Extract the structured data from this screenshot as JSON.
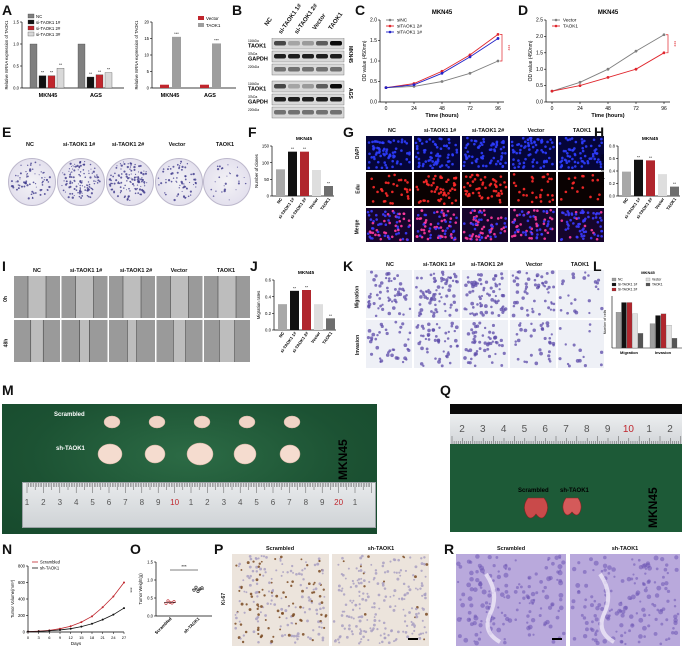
{
  "panel_letters": [
    "A",
    "B",
    "C",
    "D",
    "E",
    "F",
    "G",
    "H",
    "I",
    "J",
    "K",
    "L",
    "M",
    "Q",
    "N",
    "O",
    "P",
    "R"
  ],
  "A": {
    "left": {
      "ylabel": "Relative mRNA expression of TAOK1",
      "yticks": [
        "0.0",
        "0.5",
        "1.0",
        "1.5"
      ],
      "legend": [
        {
          "name": "NC",
          "color": "#7f7f7f"
        },
        {
          "name": "si-TAOK1 1#",
          "color": "#111111"
        },
        {
          "name": "si-TAOK1 2#",
          "color": "#c0262d"
        },
        {
          "name": "si-TAOK1 3#",
          "color": "#d9d9d9"
        }
      ],
      "groups": [
        "MKN45",
        "AGS"
      ],
      "sig": [
        "**",
        "**",
        "**",
        "**",
        "**",
        "**"
      ]
    },
    "right": {
      "ylabel": "Relative mRNA expression of TAOK1",
      "yticks": [
        "0",
        "5",
        "10",
        "15",
        "20"
      ],
      "legend": [
        {
          "name": "Vector",
          "color": "#c0262d"
        },
        {
          "name": "TAOK1",
          "color": "#9e9e9e"
        }
      ],
      "groups": [
        "MKN45",
        "AGS"
      ],
      "sig": [
        "***",
        "***"
      ]
    }
  },
  "B": {
    "columns": [
      "NC",
      "si-TAOK1 1#",
      "si-TAOK1 2#",
      "Vector",
      "TAOK1"
    ],
    "rows": [
      {
        "kda": "116kDa",
        "name": "TAOK1"
      },
      {
        "kda": "37kDa",
        "name": "GAPDH"
      },
      {
        "kda": "220kDa",
        "name": ""
      },
      {
        "kda": "116kDa",
        "name": "TAOK1"
      },
      {
        "kda": "37kDa",
        "name": "GAPDH"
      },
      {
        "kda": "220kDa",
        "name": ""
      }
    ],
    "cell_lines": [
      "MKN45",
      "AGS"
    ]
  },
  "C": {
    "title": "MKN45",
    "ylabel": "OD value (450nm)",
    "xlabel": "Time (hours)",
    "xticks": [
      "0",
      "24",
      "48",
      "72",
      "96"
    ],
    "yticks": [
      "0.0",
      "0.5",
      "1.0",
      "1.5",
      "2.0"
    ],
    "sig": "***",
    "legend": [
      {
        "name": "siNC",
        "color": "#7f7f7f"
      },
      {
        "name": "siTAOK1 2#",
        "color": "#e0262d"
      },
      {
        "name": "siTAOK1 1#",
        "color": "#2323c8"
      }
    ]
  },
  "D": {
    "title": "MKN45",
    "ylabel": "OD value (450nm)",
    "xlabel": "Time (hours)",
    "xticks": [
      "0",
      "24",
      "48",
      "72",
      "96"
    ],
    "yticks": [
      "0.0",
      "0.5",
      "1.0",
      "1.5",
      "2.0",
      "2.5"
    ],
    "sig": "***",
    "legend": [
      {
        "name": "Vector",
        "color": "#7f7f7f"
      },
      {
        "name": "TAOK1",
        "color": "#e0262d"
      }
    ]
  },
  "E": {
    "labels": [
      "NC",
      "si-TAOK1 1#",
      "si-TAOK1 2#",
      "Vector",
      "TAOK1"
    ]
  },
  "F": {
    "title": "MKN45",
    "ylabel": "Number of clones",
    "yticks": [
      "0",
      "50",
      "100",
      "150"
    ],
    "categories": [
      "NC",
      "si-TAOK1 1#",
      "si-TAOK1 2#",
      "Vector",
      "TAOK1"
    ],
    "sig": [
      "",
      "**",
      "**",
      "",
      "**"
    ]
  },
  "G": {
    "columns": [
      "NC",
      "si-TAOK1 1#",
      "si-TAOK1 2#",
      "Vector",
      "TAOK1"
    ],
    "rows": [
      "DAPI",
      "Edu",
      "Merge"
    ]
  },
  "H": {
    "title": "MKN45",
    "ylabel": "Edu positive cells",
    "yticks": [
      "0.0",
      "0.2",
      "0.4",
      "0.6",
      "0.8"
    ],
    "categories": [
      "NC",
      "si-TAOK1 1#",
      "si-TAOK1 2#",
      "Vector",
      "TAOK1"
    ],
    "sig": [
      "",
      "**",
      "**",
      "",
      "**"
    ]
  },
  "I": {
    "columns": [
      "NC",
      "si-TAOK1 1#",
      "si-TAOK1 2#",
      "Vector",
      "TAOK1"
    ],
    "rows": [
      "0h",
      "48h"
    ]
  },
  "J": {
    "title": "MKN45",
    "ylabel": "Migration rates",
    "yticks": [
      "0.0",
      "0.2",
      "0.4",
      "0.6"
    ],
    "categories": [
      "NC",
      "si-TAOK1 1#",
      "si-TAOK1 2#",
      "Vector",
      "TAOK1"
    ],
    "sig": [
      "",
      "**",
      "**",
      "",
      "**"
    ]
  },
  "K": {
    "columns": [
      "NC",
      "si-TAOK1 1#",
      "si-TAOK1 2#",
      "Vector",
      "TAOK1"
    ],
    "rows": [
      "Migration",
      "Invasion"
    ]
  },
  "L": {
    "title": "MKN45",
    "ylabel": "Number of cells",
    "legend": [
      {
        "name": "NC",
        "color": "#9e9e9e"
      },
      {
        "name": "Vector",
        "color": "#e0e0e0"
      },
      {
        "name": "Si-TAOK1 1#",
        "color": "#111111"
      },
      {
        "name": "TAOK1",
        "color": "#555555"
      },
      {
        "name": "Si-TAOK1 2#",
        "color": "#b0262d"
      }
    ],
    "groups": [
      "Migration",
      "Invasion"
    ]
  },
  "M": {
    "rows": [
      "Scrambled",
      "sh-TAOK1"
    ],
    "cell_line": "MKN45",
    "ruler_numbers": [
      "1",
      "2",
      "3",
      "4",
      "5",
      "6",
      "7",
      "8",
      "9",
      "10",
      "1",
      "2",
      "3",
      "4",
      "5",
      "6",
      "7",
      "8",
      "9",
      "20",
      "1"
    ]
  },
  "Q": {
    "ruler_numbers": [
      "2",
      "3",
      "4",
      "5",
      "6",
      "7",
      "8",
      "9",
      "10",
      "1",
      "2"
    ],
    "labels": [
      "Scrambled",
      "sh-TAOK1"
    ],
    "cell_line": "MKN45"
  },
  "N": {
    "ylabel": "Tumor Volume(mm³)",
    "xlabel": "Days",
    "xticks": [
      "0",
      "3",
      "6",
      "9",
      "12",
      "15",
      "18",
      "21",
      "24",
      "27"
    ],
    "yticks": [
      "0",
      "200",
      "400",
      "600",
      "800"
    ],
    "sig": "***",
    "legend": [
      {
        "name": "Scrambled",
        "color": "#c0262d"
      },
      {
        "name": "sh-TAOK1",
        "color": "#111111"
      }
    ]
  },
  "O": {
    "ylabel": "Tumor Weight(g)",
    "yticks": [
      "0.0",
      "0.5",
      "1.0",
      "1.5"
    ],
    "categories": [
      "Scrambled",
      "sh-TAOK1"
    ],
    "sig": "***"
  },
  "P": {
    "columns": [
      "Scrambled",
      "sh-TAOK1"
    ],
    "row": "Ki-67"
  },
  "R": {
    "columns": [
      "Scrambled",
      "sh-TAOK1"
    ]
  },
  "chart_data": [
    {
      "panel": "A-left",
      "type": "bar",
      "categories": [
        "MKN45",
        "AGS"
      ],
      "series": [
        {
          "name": "NC",
          "values": [
            1.0,
            1.0
          ]
        },
        {
          "name": "si-TAOK1 1#",
          "values": [
            0.28,
            0.25
          ]
        },
        {
          "name": "si-TAOK1 2#",
          "values": [
            0.28,
            0.3
          ]
        },
        {
          "name": "si-TAOK1 3#",
          "values": [
            0.45,
            0.35
          ]
        }
      ],
      "ylim": [
        0,
        1.5
      ]
    },
    {
      "panel": "A-right",
      "type": "bar",
      "categories": [
        "MKN45",
        "AGS"
      ],
      "series": [
        {
          "name": "Vector",
          "values": [
            1.0,
            1.0
          ]
        },
        {
          "name": "TAOK1",
          "values": [
            15.5,
            13.5
          ]
        }
      ],
      "ylim": [
        0,
        20
      ]
    },
    {
      "panel": "C",
      "type": "line",
      "x": [
        0,
        24,
        48,
        72,
        96
      ],
      "series": [
        {
          "name": "siNC",
          "values": [
            0.35,
            0.38,
            0.5,
            0.7,
            1.0
          ]
        },
        {
          "name": "siTAOK1 2#",
          "values": [
            0.35,
            0.45,
            0.75,
            1.15,
            1.65
          ]
        },
        {
          "name": "siTAOK1 1#",
          "values": [
            0.35,
            0.42,
            0.7,
            1.1,
            1.55
          ]
        }
      ],
      "ylim": [
        0,
        2.0
      ]
    },
    {
      "panel": "D",
      "type": "line",
      "x": [
        0,
        24,
        48,
        72,
        96
      ],
      "series": [
        {
          "name": "Vector",
          "values": [
            0.33,
            0.6,
            1.0,
            1.55,
            2.05
          ]
        },
        {
          "name": "TAOK1",
          "values": [
            0.33,
            0.5,
            0.75,
            1.0,
            1.5
          ]
        }
      ],
      "ylim": [
        0,
        2.5
      ]
    },
    {
      "panel": "F",
      "type": "bar",
      "categories": [
        "NC",
        "si-TAOK1 1#",
        "si-TAOK1 2#",
        "Vector",
        "TAOK1"
      ],
      "values": [
        80,
        133,
        133,
        78,
        30
      ],
      "ylim": [
        0,
        150
      ]
    },
    {
      "panel": "H",
      "type": "bar",
      "categories": [
        "NC",
        "si-TAOK1 1#",
        "si-TAOK1 2#",
        "Vector",
        "TAOK1"
      ],
      "values": [
        0.39,
        0.58,
        0.57,
        0.35,
        0.15
      ],
      "ylim": [
        0,
        0.8
      ]
    },
    {
      "panel": "J",
      "type": "bar",
      "categories": [
        "NC",
        "si-TAOK1 1#",
        "si-TAOK1 2#",
        "Vector",
        "TAOK1"
      ],
      "values": [
        0.31,
        0.47,
        0.48,
        0.31,
        0.14
      ],
      "ylim": [
        0,
        0.6
      ]
    },
    {
      "panel": "L",
      "type": "bar",
      "categories": [
        "Migration",
        "Invasion"
      ],
      "series": [
        {
          "name": "NC",
          "values": [
            220,
            150
          ]
        },
        {
          "name": "Si-TAOK1 1#",
          "values": [
            280,
            200
          ]
        },
        {
          "name": "Si-TAOK1 2#",
          "values": [
            280,
            210
          ]
        },
        {
          "name": "Vector",
          "values": [
            210,
            140
          ]
        },
        {
          "name": "TAOK1",
          "values": [
            90,
            60
          ]
        }
      ],
      "ylim": [
        0,
        320
      ]
    },
    {
      "panel": "N",
      "type": "line",
      "x": [
        0,
        3,
        6,
        9,
        12,
        15,
        18,
        21,
        24,
        27
      ],
      "series": [
        {
          "name": "Scrambled",
          "values": [
            5,
            10,
            20,
            40,
            70,
            120,
            190,
            300,
            430,
            600
          ]
        },
        {
          "name": "sh-TAOK1",
          "values": [
            5,
            8,
            15,
            25,
            40,
            65,
            100,
            150,
            210,
            290
          ]
        }
      ],
      "ylim": [
        0,
        800
      ]
    },
    {
      "panel": "O",
      "type": "scatter",
      "categories": [
        "Scrambled",
        "sh-TAOK1"
      ],
      "series": [
        {
          "name": "Scrambled",
          "values": [
            0.35,
            0.42,
            0.38,
            0.36,
            0.4
          ]
        },
        {
          "name": "sh-TAOK1",
          "values": [
            0.72,
            0.8,
            0.68,
            0.75,
            0.78
          ]
        }
      ],
      "ylim": [
        0,
        1.5
      ]
    }
  ]
}
